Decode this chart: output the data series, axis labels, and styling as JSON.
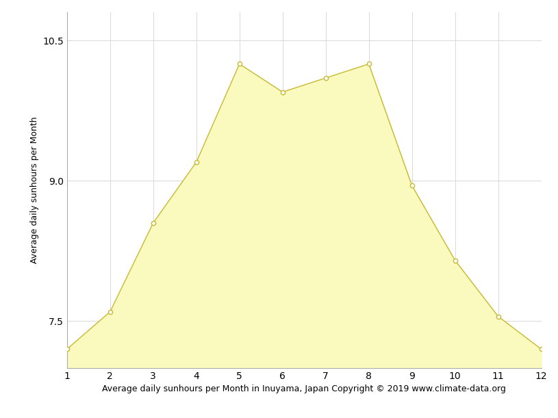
{
  "x": [
    1,
    2,
    3,
    4,
    5,
    6,
    7,
    8,
    9,
    10,
    11,
    12
  ],
  "y": [
    7.2,
    7.6,
    8.55,
    9.2,
    10.25,
    9.95,
    10.1,
    10.25,
    8.95,
    8.15,
    7.55,
    7.2
  ],
  "fill_color": "#FAFABE",
  "line_color": "#C8B832",
  "marker_color": "#FFFFFF",
  "marker_edge_color": "#C8B832",
  "xlabel": "Average daily sunhours per Month in Inuyama, Japan Copyright © 2019 www.climate-data.org",
  "ylabel": "Average daily sunhours per Month",
  "yticks": [
    7.5,
    9.0,
    10.5
  ],
  "xticks": [
    1,
    2,
    3,
    4,
    5,
    6,
    7,
    8,
    9,
    10,
    11,
    12
  ],
  "xlim": [
    1,
    12
  ],
  "ylim": [
    7.0,
    10.8
  ],
  "fill_bottom": 7.0,
  "grid_color": "#D8D8D8",
  "bg_color": "#FFFFFF",
  "axis_fontsize": 9,
  "tick_fontsize": 10
}
